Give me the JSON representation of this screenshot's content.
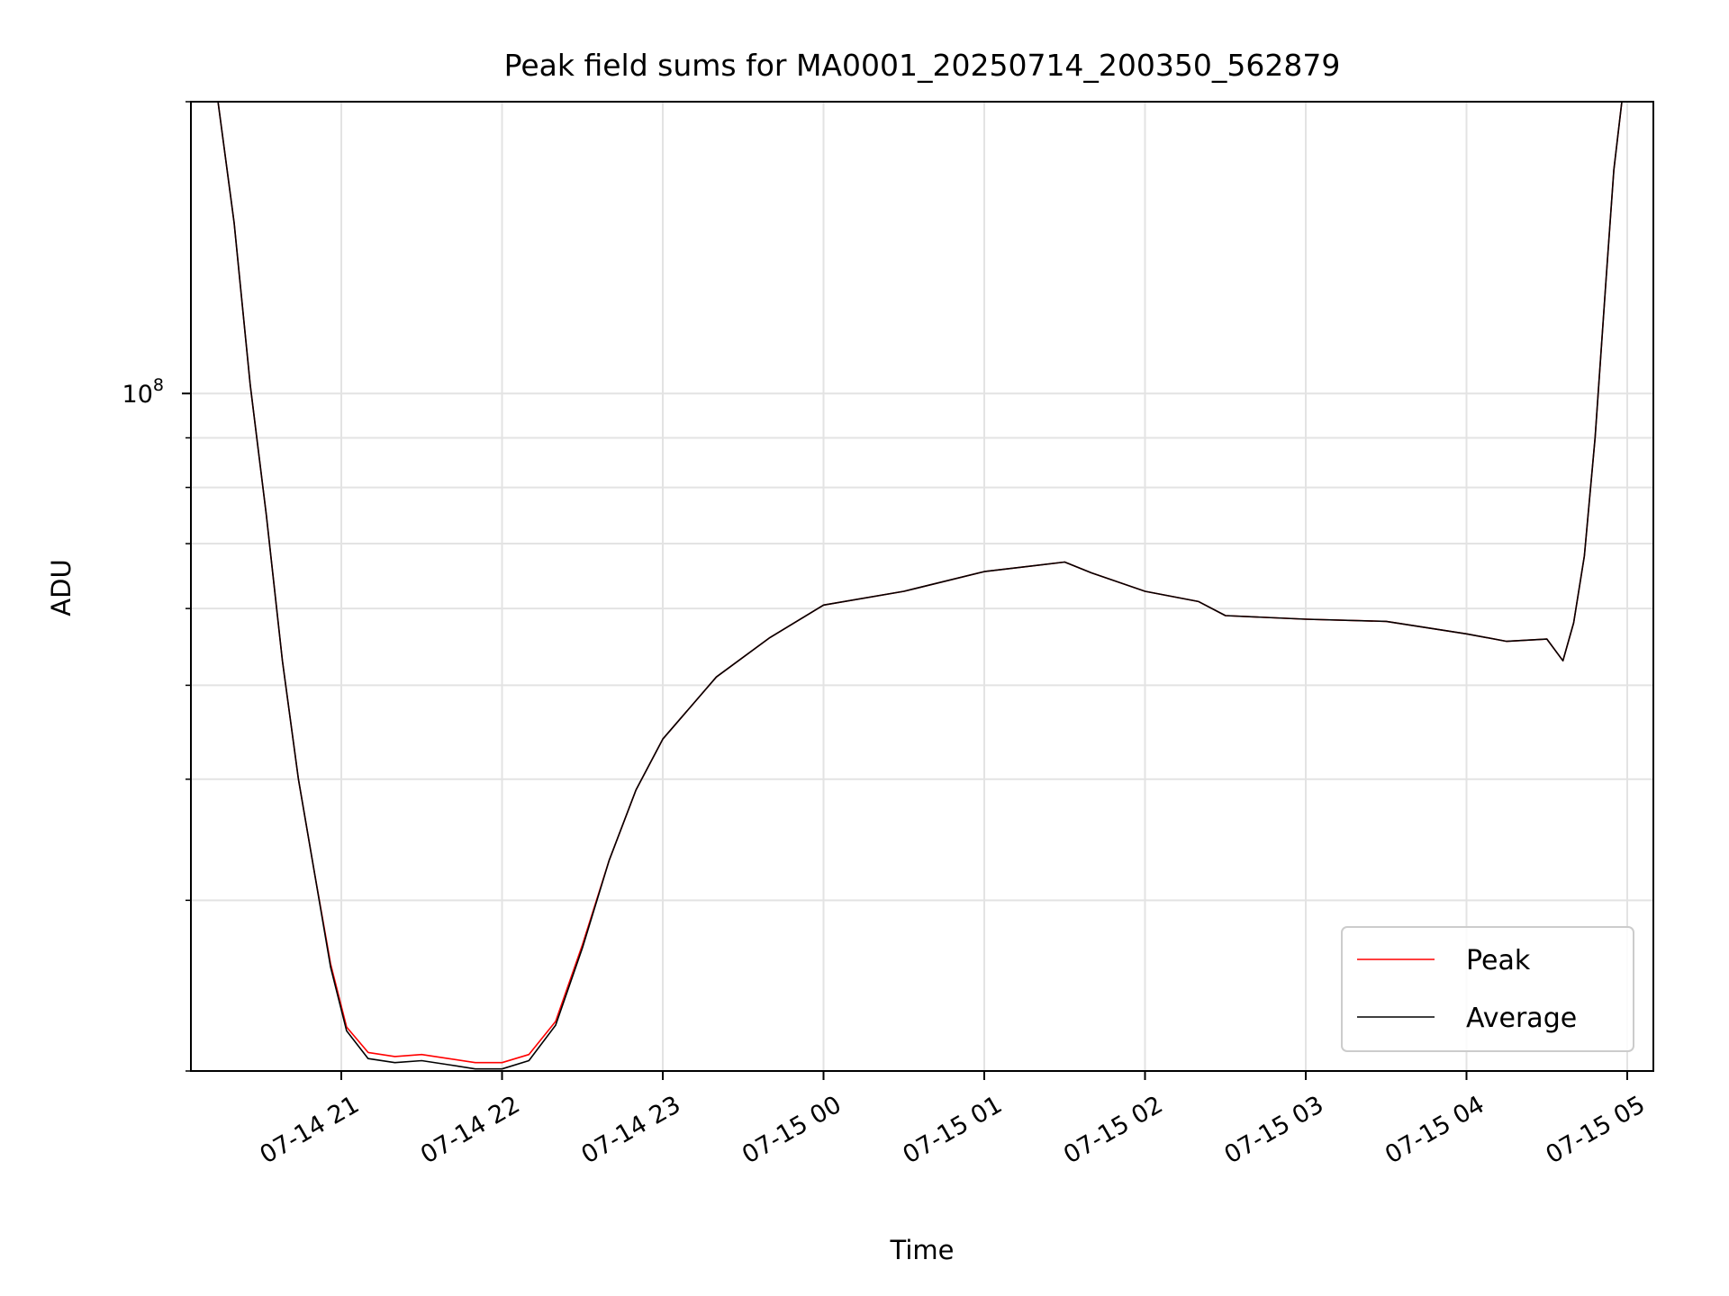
{
  "chart_data": {
    "type": "line",
    "title": "Peak field sums for MA0001_20250714_200350_562879",
    "xlabel": "Time",
    "ylabel": "ADU",
    "y_scale": "log",
    "ylim": [
      20000000,
      200000000
    ],
    "xlim": [
      "2025-07-14 20:04",
      "2025-07-15 05:00"
    ],
    "grid": true,
    "legend_position": "lower-right",
    "x_tick_labels": [
      "07-14 21",
      "07-14 22",
      "07-14 23",
      "07-15 00",
      "07-15 01",
      "07-15 02",
      "07-15 03",
      "07-15 04",
      "07-15 05"
    ],
    "y_tick_labels": [
      {
        "value": 100000000,
        "base": "10",
        "exp": "8"
      }
    ],
    "x": [
      "2025-07-14 20:14",
      "2025-07-14 20:20",
      "2025-07-14 20:26",
      "2025-07-14 20:32",
      "2025-07-14 20:38",
      "2025-07-14 20:44",
      "2025-07-14 20:50",
      "2025-07-14 20:56",
      "2025-07-14 21:02",
      "2025-07-14 21:10",
      "2025-07-14 21:20",
      "2025-07-14 21:30",
      "2025-07-14 21:40",
      "2025-07-14 21:50",
      "2025-07-14 22:00",
      "2025-07-14 22:10",
      "2025-07-14 22:20",
      "2025-07-14 22:30",
      "2025-07-14 22:40",
      "2025-07-14 22:50",
      "2025-07-14 23:00",
      "2025-07-14 23:20",
      "2025-07-14 23:40",
      "2025-07-15 00:00",
      "2025-07-15 00:30",
      "2025-07-15 01:00",
      "2025-07-15 01:30",
      "2025-07-15 01:40",
      "2025-07-15 02:00",
      "2025-07-15 02:20",
      "2025-07-15 02:30",
      "2025-07-15 03:00",
      "2025-07-15 03:30",
      "2025-07-15 04:00",
      "2025-07-15 04:15",
      "2025-07-15 04:30",
      "2025-07-15 04:36",
      "2025-07-15 04:40",
      "2025-07-15 04:44",
      "2025-07-15 04:48",
      "2025-07-15 04:52",
      "2025-07-15 04:55",
      "2025-07-15 04:58"
    ],
    "series": [
      {
        "name": "Peak",
        "color": "#ff0000",
        "values": [
          200000000,
          150000000,
          102000000,
          75000000,
          53000000,
          40000000,
          32000000,
          25800000,
          22200000,
          20900000,
          20700000,
          20800000,
          20600000,
          20400000,
          20400000,
          20800000,
          22500000,
          27000000,
          33000000,
          39000000,
          44000000,
          51000000,
          56000000,
          60500000,
          62500000,
          65500000,
          67000000,
          65300000,
          62500000,
          61000000,
          59000000,
          58500000,
          58200000,
          56500000,
          55500000,
          55800000,
          53000000,
          58000000,
          68000000,
          90000000,
          130000000,
          170000000,
          200000000
        ]
      },
      {
        "name": "Average",
        "color": "#000000",
        "values": [
          200000000,
          150000000,
          102000000,
          75000000,
          53000000,
          40000000,
          32000000,
          25600000,
          22000000,
          20600000,
          20400000,
          20500000,
          20300000,
          20100000,
          20100000,
          20500000,
          22300000,
          26800000,
          33000000,
          39000000,
          44000000,
          51000000,
          56000000,
          60500000,
          62500000,
          65500000,
          67000000,
          65300000,
          62500000,
          61000000,
          59000000,
          58500000,
          58200000,
          56500000,
          55500000,
          55800000,
          53000000,
          58000000,
          68000000,
          90000000,
          130000000,
          170000000,
          200000000
        ]
      }
    ]
  }
}
